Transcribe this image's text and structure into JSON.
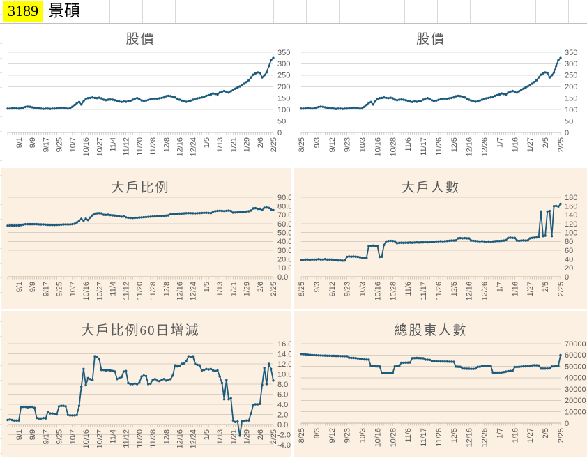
{
  "header": {
    "stock_code": "3189",
    "stock_name": "景碩"
  },
  "colors": {
    "series_line": "#1d5b7c",
    "grid_on_white": "#d9d9d9",
    "grid_on_peach": "#d9cec2",
    "axis_on_white": "#bfbfbf",
    "axis_on_peach": "#c2b6a9",
    "axis_text": "#595959",
    "panel_peach": "#fcf0e2",
    "panel_white": "#ffffff",
    "header_highlight": "#ffff00"
  },
  "chart_data": [
    {
      "id": "price-left",
      "type": "line",
      "title": "股價",
      "panel": "white",
      "ylim": [
        0,
        350
      ],
      "ystep": 50,
      "ydecimals": 0,
      "grid": true,
      "legend": "none",
      "x_tick_labels": [
        "9/1",
        "9/9",
        "9/17",
        "9/25",
        "10/7",
        "10/16",
        "10/27",
        "11/4",
        "11/12",
        "11/20",
        "11/28",
        "12/8",
        "12/16",
        "12/24",
        "1/5",
        "1/13",
        "1/21",
        "1/29",
        "2/6",
        "2/25"
      ],
      "first_label_index": 5,
      "label_index_step": 6,
      "values": [
        104,
        104,
        105,
        106,
        105,
        104,
        105,
        108,
        111,
        113,
        112,
        110,
        108,
        106,
        105,
        104,
        103,
        104,
        104,
        103,
        104,
        104,
        105,
        106,
        108,
        107,
        106,
        104,
        105,
        112,
        120,
        128,
        133,
        122,
        135,
        146,
        150,
        151,
        153,
        151,
        150,
        152,
        149,
        143,
        141,
        143,
        144,
        143,
        141,
        138,
        135,
        133,
        135,
        134,
        136,
        138,
        143,
        148,
        150,
        145,
        140,
        137,
        139,
        142,
        145,
        147,
        148,
        147,
        149,
        151,
        153,
        158,
        160,
        159,
        156,
        153,
        148,
        143,
        139,
        136,
        134,
        136,
        139,
        143,
        146,
        149,
        151,
        153,
        155,
        160,
        163,
        166,
        170,
        168,
        166,
        174,
        178,
        181,
        177,
        174,
        180,
        186,
        191,
        196,
        201,
        207,
        213,
        220,
        228,
        240,
        252,
        258,
        262,
        260,
        240,
        250,
        262,
        290,
        315,
        325
      ]
    },
    {
      "id": "price-right",
      "type": "line",
      "title": "股價",
      "panel": "white",
      "ylim": [
        0,
        350
      ],
      "ystep": 50,
      "ydecimals": 0,
      "grid": true,
      "legend": "none",
      "x_tick_labels": [
        "8/25",
        "9/3",
        "9/12",
        "9/23",
        "10/3",
        "10/16",
        "10/28",
        "11/6",
        "11/17",
        "11/26",
        "12/5",
        "12/16",
        "12/26",
        "1/7",
        "1/16",
        "1/27",
        "2/5",
        "2/25"
      ],
      "first_label_index": 0,
      "label_index_step": 7,
      "values": [
        104,
        104,
        105,
        106,
        105,
        104,
        105,
        108,
        111,
        113,
        112,
        110,
        108,
        106,
        105,
        104,
        103,
        104,
        104,
        103,
        104,
        104,
        105,
        106,
        108,
        107,
        106,
        104,
        105,
        112,
        120,
        128,
        133,
        122,
        135,
        146,
        150,
        151,
        153,
        151,
        150,
        152,
        149,
        143,
        141,
        143,
        144,
        143,
        141,
        138,
        135,
        133,
        135,
        134,
        136,
        138,
        143,
        148,
        150,
        145,
        140,
        137,
        139,
        142,
        145,
        147,
        148,
        147,
        149,
        151,
        153,
        158,
        160,
        159,
        156,
        153,
        148,
        143,
        139,
        136,
        134,
        136,
        139,
        143,
        146,
        149,
        151,
        153,
        155,
        160,
        163,
        166,
        170,
        168,
        166,
        174,
        178,
        181,
        177,
        174,
        180,
        186,
        191,
        196,
        201,
        207,
        213,
        220,
        228,
        240,
        252,
        258,
        262,
        260,
        240,
        250,
        262,
        290,
        315,
        325
      ]
    },
    {
      "id": "big-holder-ratio",
      "type": "line",
      "title": "大戶比例",
      "panel": "peach",
      "ylim": [
        0,
        90
      ],
      "ystep": 10,
      "ydecimals": 1,
      "grid": true,
      "legend": "none",
      "x_tick_labels": [
        "9/1",
        "9/9",
        "9/17",
        "9/25",
        "10/7",
        "10/16",
        "10/27",
        "11/4",
        "11/12",
        "11/20",
        "11/28",
        "12/8",
        "12/16",
        "12/24",
        "1/5",
        "1/13",
        "1/21",
        "1/29",
        "2/6",
        "2/25"
      ],
      "first_label_index": 5,
      "label_index_step": 6,
      "values": [
        57.8,
        58,
        58,
        57.9,
        58,
        58,
        58.5,
        59,
        59.5,
        59.5,
        59.5,
        59.5,
        59.5,
        59.5,
        59.3,
        59.2,
        59.2,
        59,
        58.8,
        58.7,
        58.6,
        58.6,
        58.7,
        58.8,
        59,
        59.2,
        59.3,
        59.2,
        59.3,
        59.5,
        60,
        61.5,
        63.5,
        65.5,
        63.5,
        65.8,
        64.2,
        67,
        69.5,
        71.5,
        71.8,
        72,
        71.8,
        70.2,
        70,
        70.3,
        69.8,
        69.5,
        69.3,
        68.8,
        68.4,
        68,
        68.3,
        67.3,
        66.8,
        66.6,
        66.5,
        66.7,
        66.8,
        67,
        67.2,
        67.4,
        67.6,
        67.8,
        68,
        68.2,
        68.3,
        68.5,
        68.6,
        68.8,
        69,
        69.2,
        69.5,
        70.8,
        71,
        71.2,
        71.4,
        71.5,
        71.6,
        71.8,
        72,
        72.1,
        72,
        71.9,
        71.8,
        72,
        72.1,
        72.3,
        72.4,
        72.5,
        72.3,
        72.1,
        73.8,
        74.3,
        74.6,
        74.8,
        74.6,
        74.4,
        74.7,
        74.9,
        74.5,
        72.6,
        72.8,
        73,
        73.4,
        73.1,
        73.2,
        73.8,
        74.2,
        75,
        77.4,
        77.7,
        76.9,
        77,
        75.5,
        78.2,
        78.4,
        77.9,
        76,
        75.5
      ]
    },
    {
      "id": "big-holder-count",
      "type": "line",
      "title": "大戶人數",
      "panel": "peach",
      "ylim": [
        0,
        180
      ],
      "ystep": 20,
      "ydecimals": 0,
      "grid": true,
      "legend": "none",
      "x_tick_labels": [
        "8/25",
        "9/3",
        "9/12",
        "9/23",
        "10/3",
        "10/16",
        "10/28",
        "11/6",
        "11/17",
        "11/26",
        "12/5",
        "12/16",
        "12/26",
        "1/7",
        "1/16",
        "1/27",
        "2/5",
        "2/25"
      ],
      "first_label_index": 0,
      "label_index_step": 7,
      "values": [
        38,
        38,
        39,
        39,
        38,
        39,
        39,
        39,
        40,
        39,
        39,
        40,
        39,
        39,
        39,
        38,
        38,
        37,
        37,
        36.5,
        37,
        45,
        46,
        45.5,
        46,
        45.5,
        45,
        44,
        43,
        43,
        42.5,
        70,
        70,
        70.5,
        70,
        70,
        45,
        45.5,
        72,
        80,
        81,
        81.5,
        81,
        80.5,
        76,
        76.5,
        77,
        76.5,
        77,
        77,
        77.5,
        77,
        77.5,
        78,
        77.5,
        78,
        78,
        78.5,
        78,
        78.5,
        79,
        79.5,
        80,
        80,
        80.5,
        80,
        80.5,
        81,
        81.5,
        82,
        82,
        82.5,
        87,
        87.5,
        87,
        87.5,
        87,
        87,
        82,
        81.5,
        81,
        80.5,
        80,
        80.5,
        80,
        79.5,
        80,
        79.5,
        80,
        80.5,
        81,
        81,
        81.5,
        82,
        83,
        88,
        88.5,
        88,
        88,
        82,
        81.5,
        82,
        82.5,
        82,
        82.5,
        87,
        88,
        88.5,
        89,
        90,
        148,
        92,
        93,
        148,
        149,
        92,
        160,
        160.5,
        159,
        165
      ]
    },
    {
      "id": "ratio-60day-change",
      "type": "line",
      "title": "大戶比例60日增減",
      "panel": "peach",
      "ylim": [
        -4,
        16
      ],
      "ystep": 2,
      "ydecimals": 1,
      "grid": true,
      "legend": "none",
      "axis_cross": 0,
      "x_tick_labels": [
        "9/1",
        "9/9",
        "9/17",
        "9/25",
        "10/7",
        "10/16",
        "10/27",
        "11/4",
        "11/12",
        "11/20",
        "11/28",
        "12/8",
        "12/16",
        "12/24",
        "1/5",
        "1/13",
        "1/21",
        "1/29",
        "2/6",
        "2/25"
      ],
      "first_label_index": 5,
      "label_index_step": 6,
      "values": [
        0.9,
        1.0,
        0.9,
        0.8,
        0.8,
        0.8,
        3.5,
        3.5,
        3.5,
        3.4,
        3.5,
        3.5,
        3.3,
        1.3,
        1.2,
        1.2,
        1.3,
        1.2,
        2.5,
        2.2,
        2.2,
        2.1,
        2.0,
        3.6,
        3.7,
        3.7,
        3.6,
        1.9,
        1.8,
        1.8,
        1.8,
        1.9,
        3.7,
        7.5,
        11.0,
        7.8,
        9.2,
        9.0,
        8.8,
        13.5,
        13.4,
        13.0,
        10.8,
        10.8,
        10.7,
        10.8,
        10.7,
        10.6,
        10.5,
        9.0,
        9.2,
        9.4,
        10.5,
        10.6,
        8.2,
        8.0,
        8.0,
        8.1,
        8.0,
        8.3,
        9.5,
        9.7,
        9.6,
        8.0,
        8.1,
        8.8,
        9.0,
        8.7,
        8.6,
        8.8,
        9.0,
        8.7,
        8.8,
        9.0,
        9.7,
        11.7,
        11.5,
        11.6,
        12.0,
        12.1,
        12.5,
        13.5,
        13.4,
        13.5,
        12.0,
        11.8,
        11.7,
        10.7,
        10.8,
        11.0,
        10.9,
        11.0,
        10.7,
        10.6,
        10.7,
        9.5,
        8.2,
        5.0,
        8.8,
        5.0,
        5.2,
        0.8,
        0.5,
        0.6,
        -2.2,
        0.7,
        0.7,
        0.8,
        0.8,
        2.2,
        3.8,
        4.0,
        4.0,
        4.1,
        7.8,
        11.2,
        8.0,
        12.0,
        11.0,
        8.7
      ]
    },
    {
      "id": "total-shareholders",
      "type": "line",
      "title": "總股東人數",
      "panel": "peach",
      "ylim": [
        0,
        70000
      ],
      "ystep": 10000,
      "ydecimals": 0,
      "grid": true,
      "legend": "none",
      "x_tick_labels": [
        "8/25",
        "9/3",
        "9/12",
        "9/23",
        "10/3",
        "10/16",
        "10/28",
        "11/6",
        "11/17",
        "11/26",
        "12/5",
        "12/16",
        "12/26",
        "1/7",
        "1/16",
        "1/27",
        "2/5",
        "2/25"
      ],
      "first_label_index": 0,
      "label_index_step": 7,
      "values": [
        61000,
        60800,
        60500,
        60300,
        60100,
        60000,
        59900,
        59800,
        59700,
        59600,
        59500,
        59500,
        59400,
        59400,
        59300,
        59300,
        59200,
        59200,
        59100,
        59100,
        59000,
        59000,
        57600,
        57500,
        57400,
        57300,
        56900,
        56800,
        56300,
        56100,
        56000,
        55900,
        50300,
        50200,
        50100,
        50000,
        49900,
        44400,
        44300,
        44200,
        44200,
        44300,
        44300,
        50000,
        50100,
        50200,
        53100,
        53200,
        53300,
        53300,
        53400,
        57200,
        57300,
        57400,
        57300,
        57200,
        57100,
        55900,
        55800,
        55700,
        54600,
        54500,
        54400,
        54400,
        54300,
        54300,
        54200,
        54200,
        54100,
        54100,
        54000,
        49800,
        49700,
        49600,
        48100,
        48000,
        47900,
        47900,
        47800,
        47800,
        48000,
        49600,
        49700,
        50300,
        50400,
        50500,
        50400,
        50300,
        44600,
        44500,
        44500,
        44600,
        44700,
        45000,
        45400,
        45800,
        46000,
        46100,
        49400,
        49500,
        49600,
        49800,
        50000,
        50000,
        50100,
        50100,
        50800,
        51000,
        50900,
        50800,
        48100,
        48000,
        48000,
        48100,
        48200,
        49900,
        50000,
        50200,
        50400,
        59900
      ]
    }
  ]
}
